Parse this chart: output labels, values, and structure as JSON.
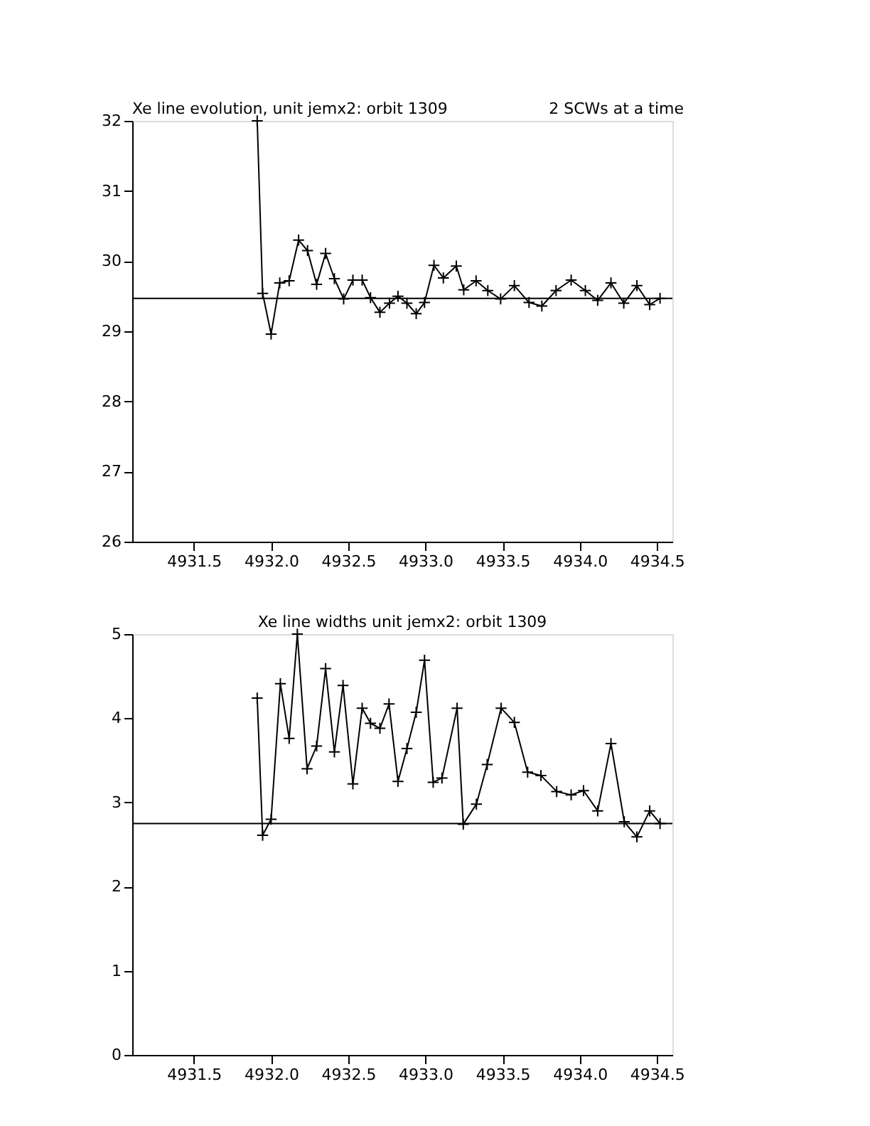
{
  "chart_data": [
    {
      "type": "line",
      "title": "Xe line evolution, unit jemx2: orbit 1309",
      "annotations": [
        "2 SCWs at a time"
      ],
      "x": [
        4931.91,
        4931.945,
        4932.0,
        4932.056,
        4932.117,
        4932.178,
        4932.236,
        4932.295,
        4932.353,
        4932.41,
        4932.47,
        4932.53,
        4932.59,
        4932.644,
        4932.705,
        4932.767,
        4932.822,
        4932.88,
        4932.94,
        4932.994,
        4933.055,
        4933.116,
        4933.2,
        4933.248,
        4933.328,
        4933.404,
        4933.487,
        4933.576,
        4933.671,
        4933.754,
        4933.846,
        4933.944,
        4934.036,
        4934.116,
        4934.202,
        4934.285,
        4934.37,
        4934.453,
        4934.52
      ],
      "series": [
        {
          "color": "#000000",
          "values": [
            32.0,
            29.54,
            28.96,
            29.69,
            29.72,
            30.3,
            30.15,
            29.67,
            30.11,
            29.75,
            29.46,
            29.73,
            29.73,
            29.48,
            29.27,
            29.4,
            29.5,
            29.4,
            29.25,
            29.41,
            29.94,
            29.76,
            29.93,
            29.59,
            29.72,
            29.58,
            29.46,
            29.65,
            29.41,
            29.36,
            29.58,
            29.73,
            29.58,
            29.44,
            29.69,
            29.4,
            29.65,
            29.38,
            29.47
          ]
        }
      ],
      "xlim": [
        4931.1,
        4934.6
      ],
      "xticks": [
        {
          "value": 4931.5,
          "label": "4931.5"
        },
        {
          "value": 4932,
          "label": "4932.0"
        },
        {
          "value": 4932.5,
          "label": "4932.5"
        },
        {
          "value": 4933,
          "label": "4933.0"
        },
        {
          "value": 4933.5,
          "label": "4933.5"
        },
        {
          "value": 4934,
          "label": "4934.0"
        },
        {
          "value": 4934.5,
          "label": "4934.5"
        }
      ],
      "ylim": [
        26,
        32
      ],
      "yticks": [
        26,
        27,
        28,
        29,
        30,
        31,
        32
      ],
      "ref_lines": [
        {
          "axis": "y",
          "value": 29.47,
          "color": "#000000"
        }
      ],
      "grid": false,
      "marker": "cross",
      "line_style": "solid"
    },
    {
      "type": "line",
      "title": "Xe line widths unit jemx2: orbit 1309",
      "x": [
        4931.91,
        4931.945,
        4932.0,
        4932.06,
        4932.117,
        4932.17,
        4932.233,
        4932.295,
        4932.353,
        4932.41,
        4932.466,
        4932.53,
        4932.59,
        4932.644,
        4932.705,
        4932.764,
        4932.822,
        4932.88,
        4932.94,
        4932.994,
        4933.05,
        4933.107,
        4933.205,
        4933.245,
        4933.33,
        4933.4,
        4933.49,
        4933.576,
        4933.662,
        4933.748,
        4933.85,
        4933.944,
        4934.024,
        4934.116,
        4934.202,
        4934.288,
        4934.37,
        4934.453,
        4934.52
      ],
      "series": [
        {
          "color": "#000000",
          "values": [
            4.24,
            2.61,
            2.8,
            4.41,
            3.76,
            5.0,
            3.4,
            3.67,
            4.59,
            3.6,
            4.39,
            3.22,
            4.12,
            3.94,
            3.88,
            4.17,
            3.25,
            3.64,
            4.07,
            4.69,
            3.24,
            3.29,
            4.12,
            2.74,
            2.98,
            3.45,
            4.12,
            3.95,
            3.36,
            3.32,
            3.13,
            3.09,
            3.14,
            2.9,
            3.7,
            2.77,
            2.59,
            2.9,
            2.75
          ]
        }
      ],
      "xlim": [
        4931.1,
        4934.6
      ],
      "xticks": [
        {
          "value": 4931.5,
          "label": "4931.5"
        },
        {
          "value": 4932,
          "label": "4932.0"
        },
        {
          "value": 4932.5,
          "label": "4932.5"
        },
        {
          "value": 4933,
          "label": "4933.0"
        },
        {
          "value": 4933.5,
          "label": "4933.5"
        },
        {
          "value": 4934,
          "label": "4934.0"
        },
        {
          "value": 4934.5,
          "label": "4934.5"
        }
      ],
      "ylim": [
        0,
        5
      ],
      "yticks": [
        0,
        1,
        2,
        3,
        4,
        5
      ],
      "ref_lines": [
        {
          "axis": "y",
          "value": 2.75,
          "color": "#000000"
        }
      ],
      "grid": false,
      "marker": "cross",
      "line_style": "solid"
    }
  ]
}
